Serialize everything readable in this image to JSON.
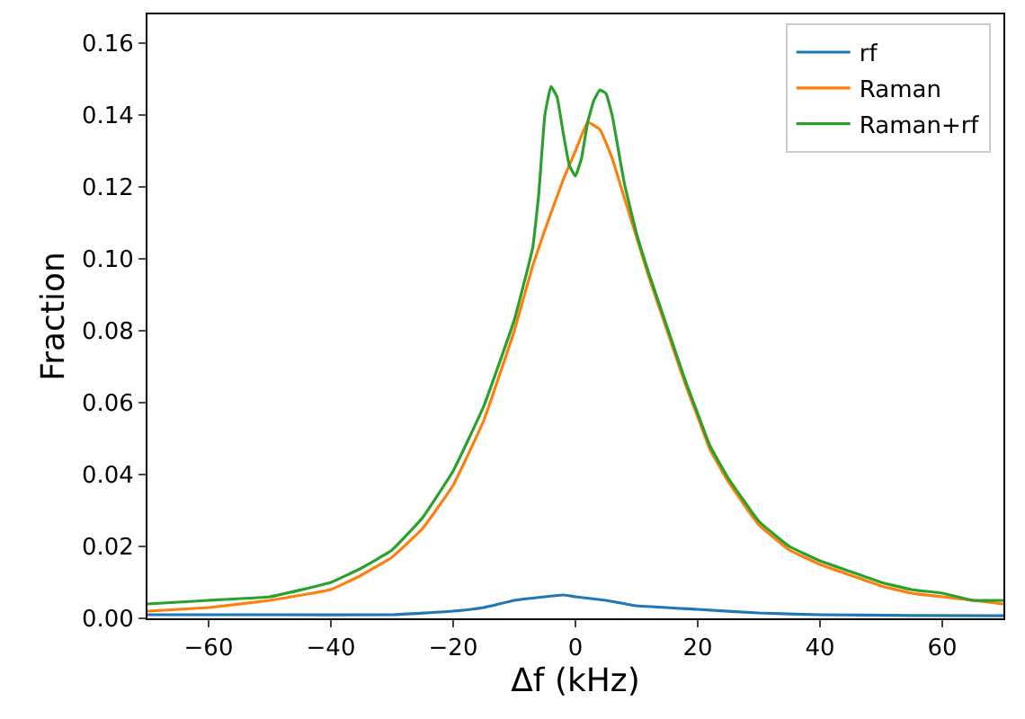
{
  "chart_data": {
    "type": "line",
    "xlabel": "Δf (kHz)",
    "ylabel": "Fraction",
    "xlim": [
      -70,
      70
    ],
    "ylim": [
      0,
      0.168
    ],
    "xticks": [
      {
        "value": -60,
        "label": "−60"
      },
      {
        "value": -40,
        "label": "−40"
      },
      {
        "value": -20,
        "label": "−20"
      },
      0,
      20,
      40,
      60
    ],
    "yticks": [
      {
        "value": 0,
        "label": "0.00"
      },
      {
        "value": 0.02,
        "label": "0.02"
      },
      {
        "value": 0.04,
        "label": "0.04"
      },
      {
        "value": 0.06,
        "label": "0.06"
      },
      {
        "value": 0.08,
        "label": "0.08"
      },
      {
        "value": 0.1,
        "label": "0.10"
      },
      {
        "value": 0.12,
        "label": "0.12"
      },
      {
        "value": 0.14,
        "label": "0.14"
      },
      {
        "value": 0.16,
        "label": "0.16"
      }
    ],
    "legend": "top right",
    "marker": "none",
    "line_style": "solid",
    "series": [
      {
        "name": "rf",
        "color": "#1f77b4",
        "x": [
          -70,
          -50,
          -30,
          -20,
          -15,
          -10,
          -5,
          -2,
          0,
          5,
          10,
          20,
          30,
          40,
          55,
          70
        ],
        "values": [
          0.001,
          0.001,
          0.001,
          0.002,
          0.003,
          0.005,
          0.006,
          0.0065,
          0.006,
          0.005,
          0.0035,
          0.0025,
          0.0015,
          0.001,
          0.0008,
          0.0007
        ]
      },
      {
        "name": "Raman",
        "color": "#ff7f0e",
        "x": [
          -70,
          -60,
          -50,
          -40,
          -35,
          -30,
          -25,
          -20,
          -15,
          -10,
          -7,
          -5,
          -2,
          0,
          2,
          4,
          6,
          8,
          10,
          12,
          15,
          18,
          20,
          22,
          25,
          30,
          35,
          40,
          45,
          50,
          55,
          60,
          65,
          70
        ],
        "values": [
          0.002,
          0.003,
          0.005,
          0.008,
          0.012,
          0.017,
          0.025,
          0.037,
          0.055,
          0.08,
          0.098,
          0.108,
          0.122,
          0.13,
          0.138,
          0.136,
          0.128,
          0.117,
          0.106,
          0.095,
          0.08,
          0.065,
          0.056,
          0.047,
          0.038,
          0.026,
          0.019,
          0.015,
          0.012,
          0.009,
          0.007,
          0.006,
          0.005,
          0.004
        ]
      },
      {
        "name": "Raman+rf",
        "color": "#2ca02c",
        "x": [
          -70,
          -60,
          -50,
          -40,
          -35,
          -30,
          -25,
          -20,
          -15,
          -10,
          -7,
          -6,
          -5,
          -4,
          -3,
          -2,
          -1,
          0,
          1,
          2,
          3,
          4,
          5,
          6,
          8,
          10,
          12,
          15,
          18,
          20,
          22,
          25,
          30,
          35,
          40,
          45,
          50,
          55,
          60,
          65,
          70
        ],
        "values": [
          0.004,
          0.005,
          0.006,
          0.01,
          0.014,
          0.019,
          0.028,
          0.041,
          0.059,
          0.083,
          0.103,
          0.118,
          0.14,
          0.148,
          0.145,
          0.135,
          0.126,
          0.123,
          0.128,
          0.138,
          0.144,
          0.147,
          0.146,
          0.14,
          0.121,
          0.107,
          0.096,
          0.081,
          0.066,
          0.057,
          0.048,
          0.039,
          0.027,
          0.02,
          0.016,
          0.013,
          0.01,
          0.008,
          0.007,
          0.005,
          0.005
        ]
      }
    ]
  }
}
